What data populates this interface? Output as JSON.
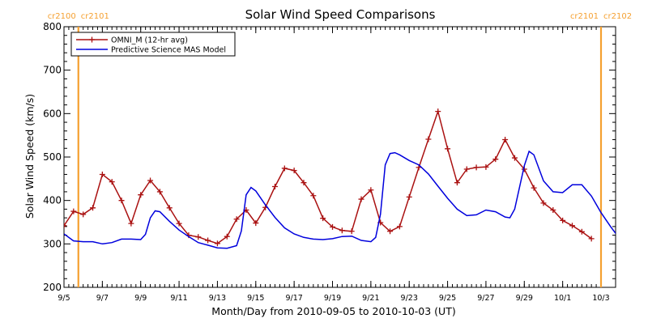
{
  "chart_data": {
    "type": "line",
    "title": "Solar Wind Speed Comparisons",
    "xlabel": "Month/Day from 2010-09-05 to 2010-10-03 (UT)",
    "ylabel": "Solar Wind Speed (km/s)",
    "xlim": [
      "2010-09-05",
      "2010-10-03"
    ],
    "ylim": [
      200,
      800
    ],
    "yticks": [
      200,
      300,
      400,
      500,
      600,
      700,
      800
    ],
    "xticks": [
      {
        "date": "2010-09-05",
        "label": "9/5"
      },
      {
        "date": "2010-09-07",
        "label": "9/7"
      },
      {
        "date": "2010-09-09",
        "label": "9/9"
      },
      {
        "date": "2010-09-11",
        "label": "9/11"
      },
      {
        "date": "2010-09-13",
        "label": "9/13"
      },
      {
        "date": "2010-09-15",
        "label": "9/15"
      },
      {
        "date": "2010-09-17",
        "label": "9/17"
      },
      {
        "date": "2010-09-19",
        "label": "9/19"
      },
      {
        "date": "2010-09-21",
        "label": "9/21"
      },
      {
        "date": "2010-09-23",
        "label": "9/23"
      },
      {
        "date": "2010-09-25",
        "label": "9/25"
      },
      {
        "date": "2010-09-27",
        "label": "9/27"
      },
      {
        "date": "2010-09-29",
        "label": "9/29"
      },
      {
        "date": "2010-10-01",
        "label": "10/1"
      },
      {
        "date": "2010-10-03",
        "label": "10/3"
      }
    ],
    "legend_position": "top-left",
    "markers": [
      {
        "date": "2010-09-05 18:00",
        "label_left": "cr2100",
        "label_right": "cr2101",
        "color": "#f5a030"
      },
      {
        "date": "2010-10-03 00:00",
        "label_left": "cr2101",
        "label_right": "cr2102",
        "color": "#f5a030"
      }
    ],
    "series": [
      {
        "name": "OMNI_M (12-hr avg)",
        "color": "#aa1111",
        "marker": "plus",
        "points": [
          [
            "2010-09-05 00:00",
            342
          ],
          [
            "2010-09-05 12:00",
            375
          ],
          [
            "2010-09-06 00:00",
            368
          ],
          [
            "2010-09-06 12:00",
            383
          ],
          [
            "2010-09-07 00:00",
            460
          ],
          [
            "2010-09-07 12:00",
            443
          ],
          [
            "2010-09-08 00:00",
            400
          ],
          [
            "2010-09-08 12:00",
            347
          ],
          [
            "2010-09-09 00:00",
            413
          ],
          [
            "2010-09-09 12:00",
            446
          ],
          [
            "2010-09-10 00:00",
            420
          ],
          [
            "2010-09-10 12:00",
            383
          ],
          [
            "2010-09-11 00:00",
            347
          ],
          [
            "2010-09-11 12:00",
            320
          ],
          [
            "2010-09-12 00:00",
            316
          ],
          [
            "2010-09-12 12:00",
            308
          ],
          [
            "2010-09-13 00:00",
            301
          ],
          [
            "2010-09-13 12:00",
            317
          ],
          [
            "2010-09-14 00:00",
            357
          ],
          [
            "2010-09-14 12:00",
            378
          ],
          [
            "2010-09-15 00:00",
            348
          ],
          [
            "2010-09-15 12:00",
            384
          ],
          [
            "2010-09-16 00:00",
            432
          ],
          [
            "2010-09-16 12:00",
            474
          ],
          [
            "2010-09-17 00:00",
            469
          ],
          [
            "2010-09-17 12:00",
            441
          ],
          [
            "2010-09-18 00:00",
            411
          ],
          [
            "2010-09-18 12:00",
            359
          ],
          [
            "2010-09-19 00:00",
            339
          ],
          [
            "2010-09-19 12:00",
            331
          ],
          [
            "2010-09-20 00:00",
            329
          ],
          [
            "2010-09-20 12:00",
            403
          ],
          [
            "2010-09-21 00:00",
            424
          ],
          [
            "2010-09-21 12:00",
            349
          ],
          [
            "2010-09-22 00:00",
            329
          ],
          [
            "2010-09-22 12:00",
            340
          ],
          [
            "2010-09-23 00:00",
            408
          ],
          [
            "2010-09-23 12:00",
            476
          ],
          [
            "2010-09-24 00:00",
            541
          ],
          [
            "2010-09-24 12:00",
            605
          ],
          [
            "2010-09-25 00:00",
            519
          ],
          [
            "2010-09-25 12:00",
            441
          ],
          [
            "2010-09-26 00:00",
            472
          ],
          [
            "2010-09-26 12:00",
            476
          ],
          [
            "2010-09-27 00:00",
            477
          ],
          [
            "2010-09-27 12:00",
            495
          ],
          [
            "2010-09-28 00:00",
            540
          ],
          [
            "2010-09-28 12:00",
            498
          ],
          [
            "2010-09-29 00:00",
            472
          ],
          [
            "2010-09-29 12:00",
            429
          ],
          [
            "2010-09-30 00:00",
            394
          ],
          [
            "2010-09-30 12:00",
            378
          ],
          [
            "2010-10-01 00:00",
            354
          ],
          [
            "2010-10-01 12:00",
            342
          ],
          [
            "2010-10-02 00:00",
            328
          ],
          [
            "2010-10-02 12:00",
            312
          ]
        ]
      },
      {
        "name": "Predictive Science MAS Model",
        "color": "#0000dd",
        "marker": "none",
        "points": [
          [
            "2010-09-05 00:00",
            323
          ],
          [
            "2010-09-05 12:00",
            307
          ],
          [
            "2010-09-06 00:00",
            305
          ],
          [
            "2010-09-06 12:00",
            305
          ],
          [
            "2010-09-07 00:00",
            300
          ],
          [
            "2010-09-07 12:00",
            303
          ],
          [
            "2010-09-08 00:00",
            311
          ],
          [
            "2010-09-08 12:00",
            311
          ],
          [
            "2010-09-09 00:00",
            310
          ],
          [
            "2010-09-09 06:00",
            322
          ],
          [
            "2010-09-09 12:00",
            360
          ],
          [
            "2010-09-09 18:00",
            376
          ],
          [
            "2010-09-10 00:00",
            374
          ],
          [
            "2010-09-10 12:00",
            352
          ],
          [
            "2010-09-11 00:00",
            332
          ],
          [
            "2010-09-11 12:00",
            317
          ],
          [
            "2010-09-12 00:00",
            303
          ],
          [
            "2010-09-12 12:00",
            297
          ],
          [
            "2010-09-13 00:00",
            291
          ],
          [
            "2010-09-13 12:00",
            290
          ],
          [
            "2010-09-14 00:00",
            296
          ],
          [
            "2010-09-14 06:00",
            330
          ],
          [
            "2010-09-14 12:00",
            413
          ],
          [
            "2010-09-14 18:00",
            430
          ],
          [
            "2010-09-15 00:00",
            422
          ],
          [
            "2010-09-15 12:00",
            390
          ],
          [
            "2010-09-16 00:00",
            361
          ],
          [
            "2010-09-16 12:00",
            337
          ],
          [
            "2010-09-17 00:00",
            323
          ],
          [
            "2010-09-17 12:00",
            315
          ],
          [
            "2010-09-18 00:00",
            311
          ],
          [
            "2010-09-18 12:00",
            310
          ],
          [
            "2010-09-19 00:00",
            312
          ],
          [
            "2010-09-19 12:00",
            317
          ],
          [
            "2010-09-20 00:00",
            318
          ],
          [
            "2010-09-20 12:00",
            308
          ],
          [
            "2010-09-21 00:00",
            305
          ],
          [
            "2010-09-21 06:00",
            315
          ],
          [
            "2010-09-21 12:00",
            368
          ],
          [
            "2010-09-21 18:00",
            482
          ],
          [
            "2010-09-22 00:00",
            508
          ],
          [
            "2010-09-22 06:00",
            510
          ],
          [
            "2010-09-22 12:00",
            505
          ],
          [
            "2010-09-23 00:00",
            492
          ],
          [
            "2010-09-23 12:00",
            482
          ],
          [
            "2010-09-24 00:00",
            461
          ],
          [
            "2010-09-24 12:00",
            433
          ],
          [
            "2010-09-25 00:00",
            405
          ],
          [
            "2010-09-25 12:00",
            380
          ],
          [
            "2010-09-26 00:00",
            365
          ],
          [
            "2010-09-26 12:00",
            367
          ],
          [
            "2010-09-27 00:00",
            378
          ],
          [
            "2010-09-27 12:00",
            374
          ],
          [
            "2010-09-28 00:00",
            362
          ],
          [
            "2010-09-28 06:00",
            360
          ],
          [
            "2010-09-28 12:00",
            380
          ],
          [
            "2010-09-29 00:00",
            480
          ],
          [
            "2010-09-29 06:00",
            513
          ],
          [
            "2010-09-29 12:00",
            505
          ],
          [
            "2010-09-30 00:00",
            445
          ],
          [
            "2010-09-30 12:00",
            420
          ],
          [
            "2010-10-01 00:00",
            418
          ],
          [
            "2010-10-01 12:00",
            436
          ],
          [
            "2010-10-02 00:00",
            436
          ],
          [
            "2010-10-02 12:00",
            410
          ],
          [
            "2010-10-03 00:00",
            372
          ],
          [
            "2010-10-03 12:00",
            340
          ],
          [
            "2010-10-04 00:00",
            310
          ]
        ]
      }
    ]
  }
}
